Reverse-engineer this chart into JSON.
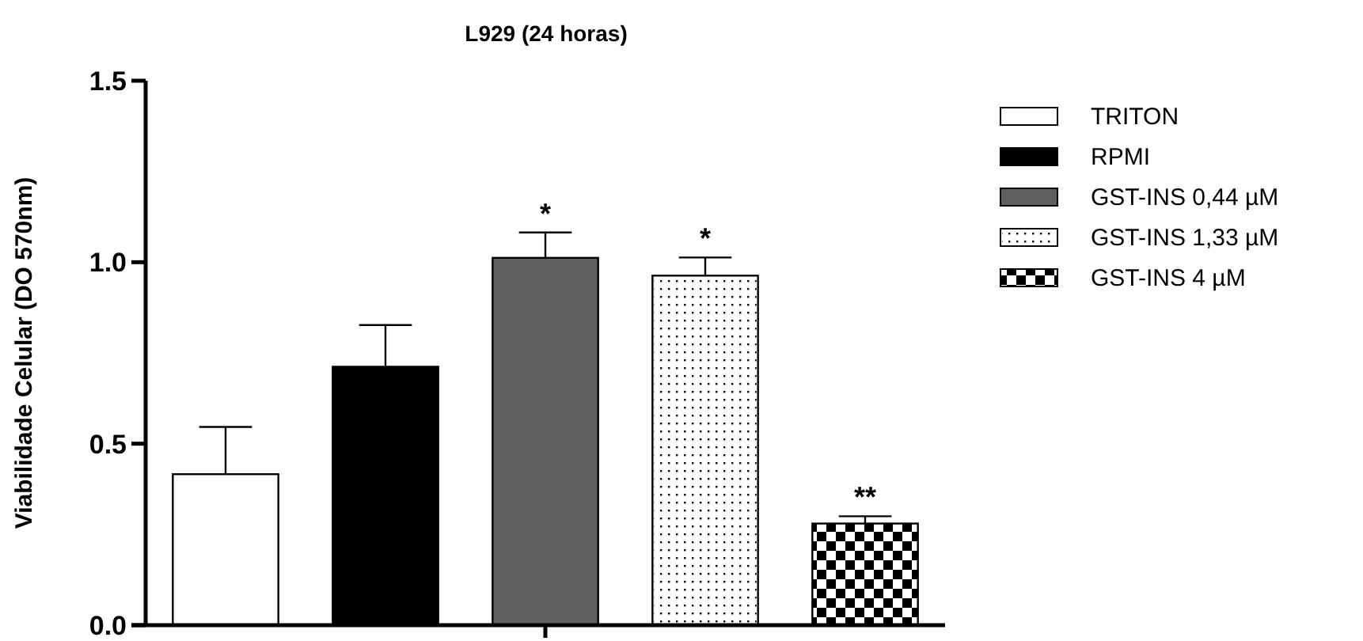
{
  "chart_data": {
    "type": "bar",
    "title": "L929 (24 horas)",
    "ylabel": "Viabilidade Celular (DO 570nm)",
    "categories": [
      null
    ],
    "series": [
      {
        "name": "TRITON",
        "color": "#ffffff",
        "values": [
          0.416
        ],
        "errors": [
          0.13
        ]
      },
      {
        "name": "RPMI",
        "color": "#000000",
        "values": [
          0.712
        ],
        "errors": [
          0.115
        ]
      },
      {
        "name": "GST-INS 0,44 µM",
        "color": "#606060",
        "values": [
          1.012
        ],
        "errors": [
          0.07
        ],
        "value_labels": [
          "*"
        ]
      },
      {
        "name": "GST-INS 1,33 µM",
        "color": "#ffffff",
        "values": [
          0.963
        ],
        "errors": [
          0.05
        ],
        "value_labels": [
          "*"
        ]
      },
      {
        "name": "GST-INS 4 µM",
        "color": "#000000",
        "values": [
          0.28
        ],
        "errors": [
          0.02
        ],
        "value_labels": [
          "**"
        ]
      }
    ],
    "ylim": [
      0,
      1.5
    ],
    "yticks": [
      {
        "value": 0,
        "label": "0.0"
      },
      1.5,
      {
        "value": 0.5,
        "label": "0.5"
      },
      {
        "value": 1,
        "label": "1.0"
      }
    ],
    "legend": "right",
    "grid": false
  }
}
